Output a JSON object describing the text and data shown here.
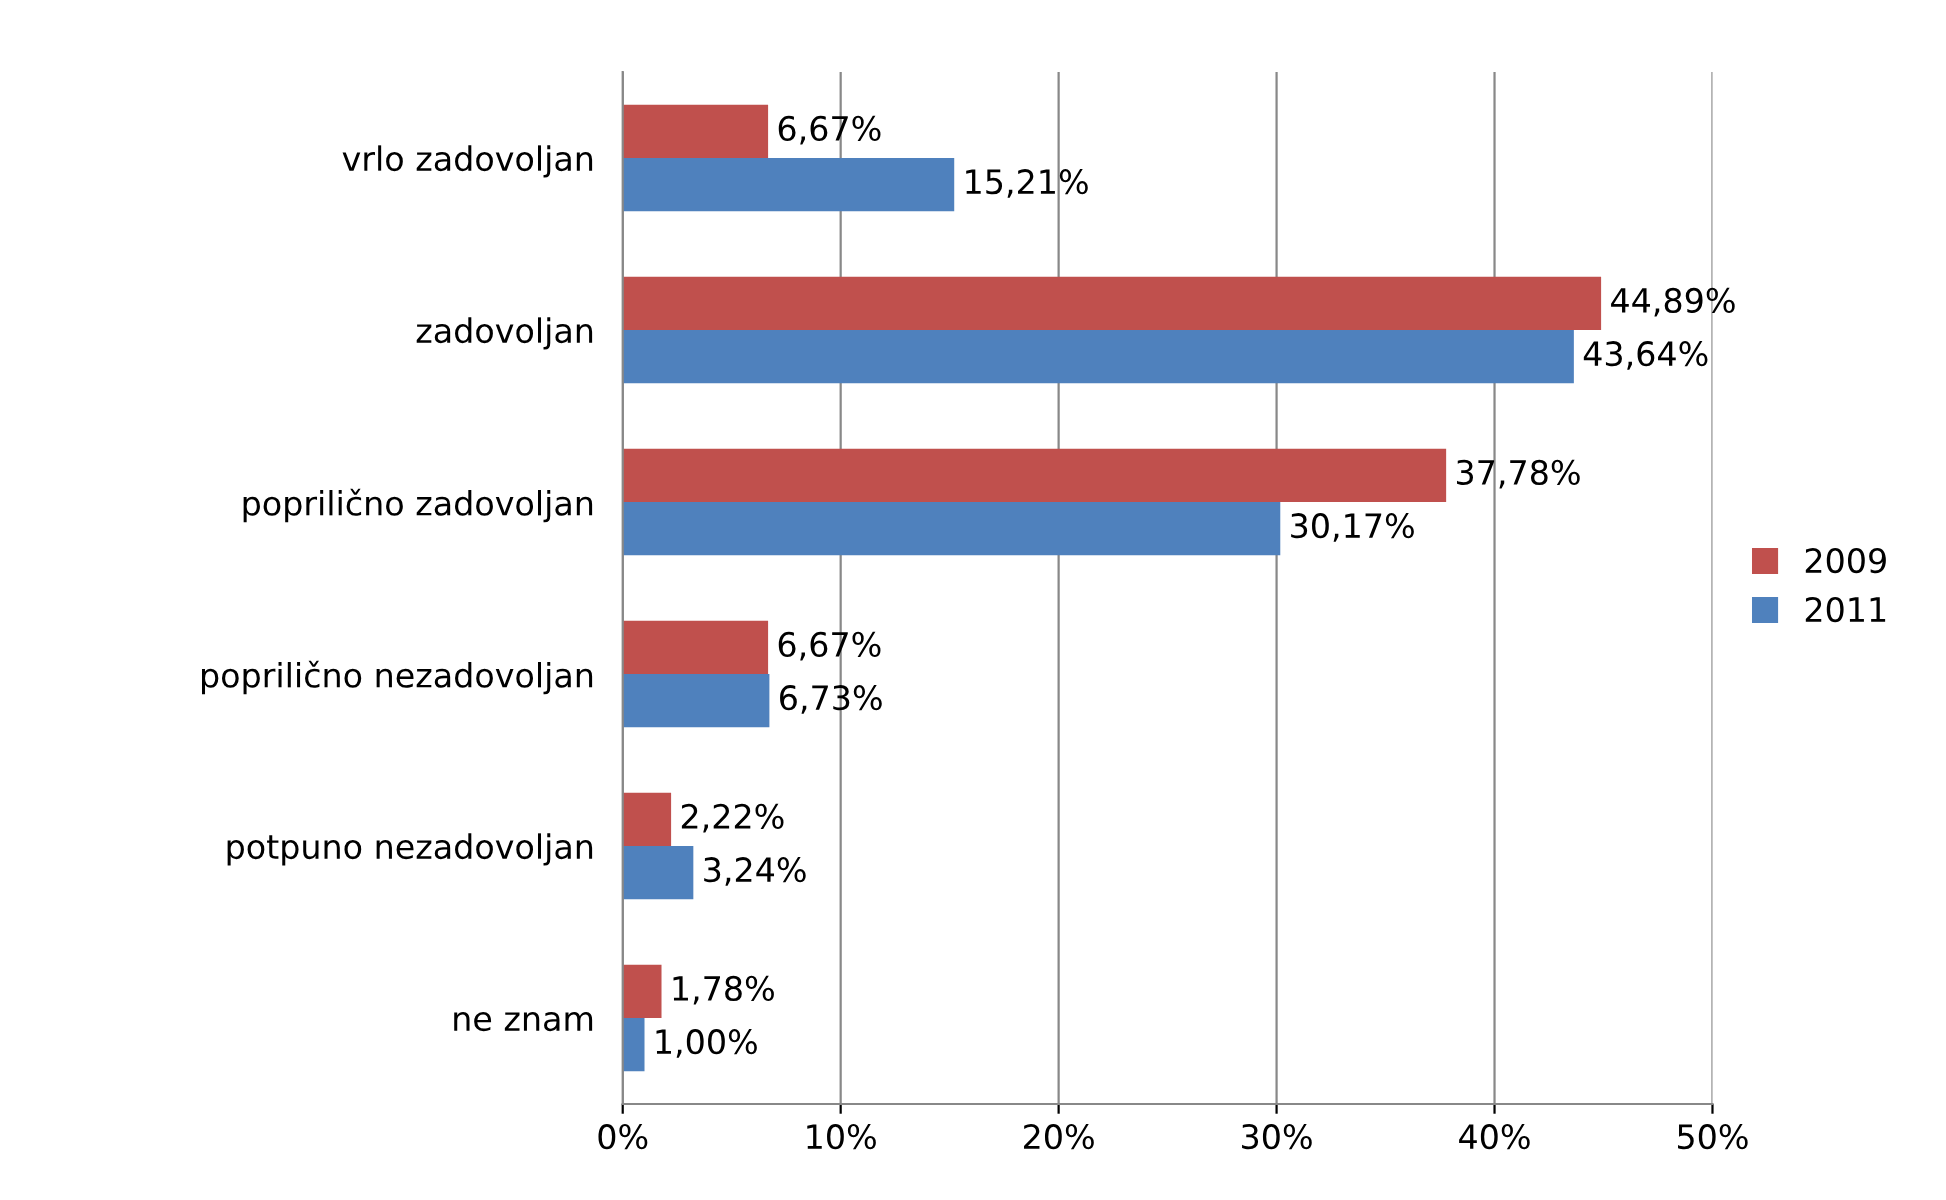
{
  "chart_data": {
    "type": "bar",
    "orientation": "horizontal",
    "categories": [
      "vrlo zadovoljan",
      "zadovoljan",
      "poprilično zadovoljan",
      "poprilično nezadovoljan",
      "potpuno nezadovoljan",
      "ne znam"
    ],
    "series": [
      {
        "name": "2009",
        "color": "#c0504d",
        "values": [
          6.67,
          44.89,
          37.78,
          6.67,
          2.22,
          1.78
        ],
        "value_labels": [
          "6,67%",
          "44,89%",
          "37,78%",
          "6,67%",
          "2,22%",
          "1,78%"
        ]
      },
      {
        "name": "2011",
        "color": "#4f81bd",
        "values": [
          15.21,
          43.64,
          30.17,
          6.73,
          3.24,
          1.0
        ],
        "value_labels": [
          "15,21%",
          "43,64%",
          "30,17%",
          "6,73%",
          "3,24%",
          "1,00%"
        ]
      }
    ],
    "xlim": [
      0,
      50
    ],
    "xticks": [
      {
        "value": 0,
        "label": "0%"
      },
      {
        "value": 10,
        "label": "10%"
      },
      {
        "value": 20,
        "label": "20%"
      },
      {
        "value": 30,
        "label": "30%"
      },
      {
        "value": 40,
        "label": "40%"
      },
      {
        "value": 50,
        "label": "50%"
      }
    ],
    "grid": "x",
    "legend": "right"
  }
}
